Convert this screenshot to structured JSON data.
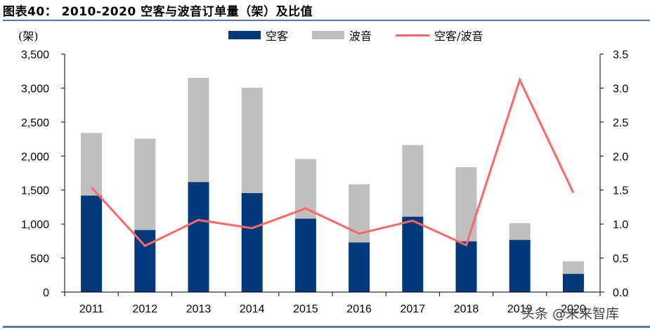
{
  "header": {
    "title": "图表40：  2010-2020 空客与波音订单量（架）及比值",
    "unit_label": "(架)"
  },
  "legend": [
    {
      "label": "空客",
      "color": "#003a7a",
      "kind": "bar"
    },
    {
      "label": "波音",
      "color": "#bfbfbf",
      "kind": "bar"
    },
    {
      "label": "空客/波音",
      "color": "#ff6666",
      "kind": "line"
    }
  ],
  "watermark": "头条 @未来智库",
  "chart_data": {
    "type": "bar",
    "stacked": true,
    "title": "2010-2020 空客与波音订单量（架）及比值",
    "xlabel": "",
    "ylabel": "(架)",
    "categories": [
      "2011",
      "2012",
      "2013",
      "2014",
      "2015",
      "2016",
      "2017",
      "2018",
      "2019",
      "2020"
    ],
    "series": [
      {
        "name": "空客",
        "type": "bar",
        "axis": "left",
        "color": "#003a7a",
        "values": [
          1419,
          913,
          1619,
          1456,
          1080,
          731,
          1109,
          747,
          768,
          268
        ]
      },
      {
        "name": "波音",
        "type": "bar",
        "axis": "left",
        "color": "#bfbfbf",
        "values": [
          921,
          1344,
          1531,
          1550,
          877,
          853,
          1053,
          1090,
          246,
          184
        ]
      },
      {
        "name": "空客/波音",
        "type": "line",
        "axis": "right",
        "color": "#ff6666",
        "values": [
          1.54,
          0.68,
          1.06,
          0.94,
          1.23,
          0.86,
          1.05,
          0.69,
          3.12,
          1.46
        ]
      }
    ],
    "ylim": [
      0,
      3500
    ],
    "yticks": [
      "0",
      "500",
      "1,000",
      "1,500",
      "2,000",
      "2,500",
      "3,000",
      "3,500"
    ],
    "y2lim": [
      0,
      3.5
    ],
    "y2ticks": [
      "0.0",
      "0.5",
      "1.0",
      "1.5",
      "2.0",
      "2.5",
      "3.0",
      "3.5"
    ],
    "grid": false,
    "legend_position": "top"
  }
}
